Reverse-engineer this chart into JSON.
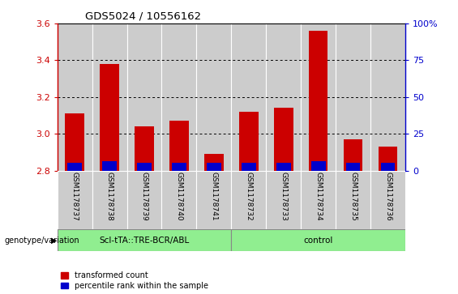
{
  "title": "GDS5024 / 10556162",
  "samples": [
    "GSM1178737",
    "GSM1178738",
    "GSM1178739",
    "GSM1178740",
    "GSM1178741",
    "GSM1178732",
    "GSM1178733",
    "GSM1178734",
    "GSM1178735",
    "GSM1178736"
  ],
  "red_values": [
    3.11,
    3.38,
    3.04,
    3.07,
    2.89,
    3.12,
    3.14,
    3.56,
    2.97,
    2.93
  ],
  "blue_values": [
    0.04,
    0.05,
    0.04,
    0.04,
    0.04,
    0.04,
    0.04,
    0.05,
    0.04,
    0.04
  ],
  "ymin": 2.8,
  "ymax": 3.6,
  "yticks": [
    2.8,
    3.0,
    3.2,
    3.4,
    3.6
  ],
  "right_yticks": [
    0,
    25,
    50,
    75,
    100
  ],
  "group1_label": "Scl-tTA::TRE-BCR/ABL",
  "group2_label": "control",
  "group1_indices": [
    0,
    1,
    2,
    3,
    4
  ],
  "group2_indices": [
    5,
    6,
    7,
    8,
    9
  ],
  "group_bg_color": "#90EE90",
  "bar_bg_color": "#CCCCCC",
  "bar_width": 0.55,
  "red_color": "#CC0000",
  "blue_color": "#0000CC",
  "left_axis_color": "#CC0000",
  "right_axis_color": "#0000CC",
  "legend_red_label": "transformed count",
  "legend_blue_label": "percentile rank within the sample",
  "genotype_label": "genotype/variation"
}
